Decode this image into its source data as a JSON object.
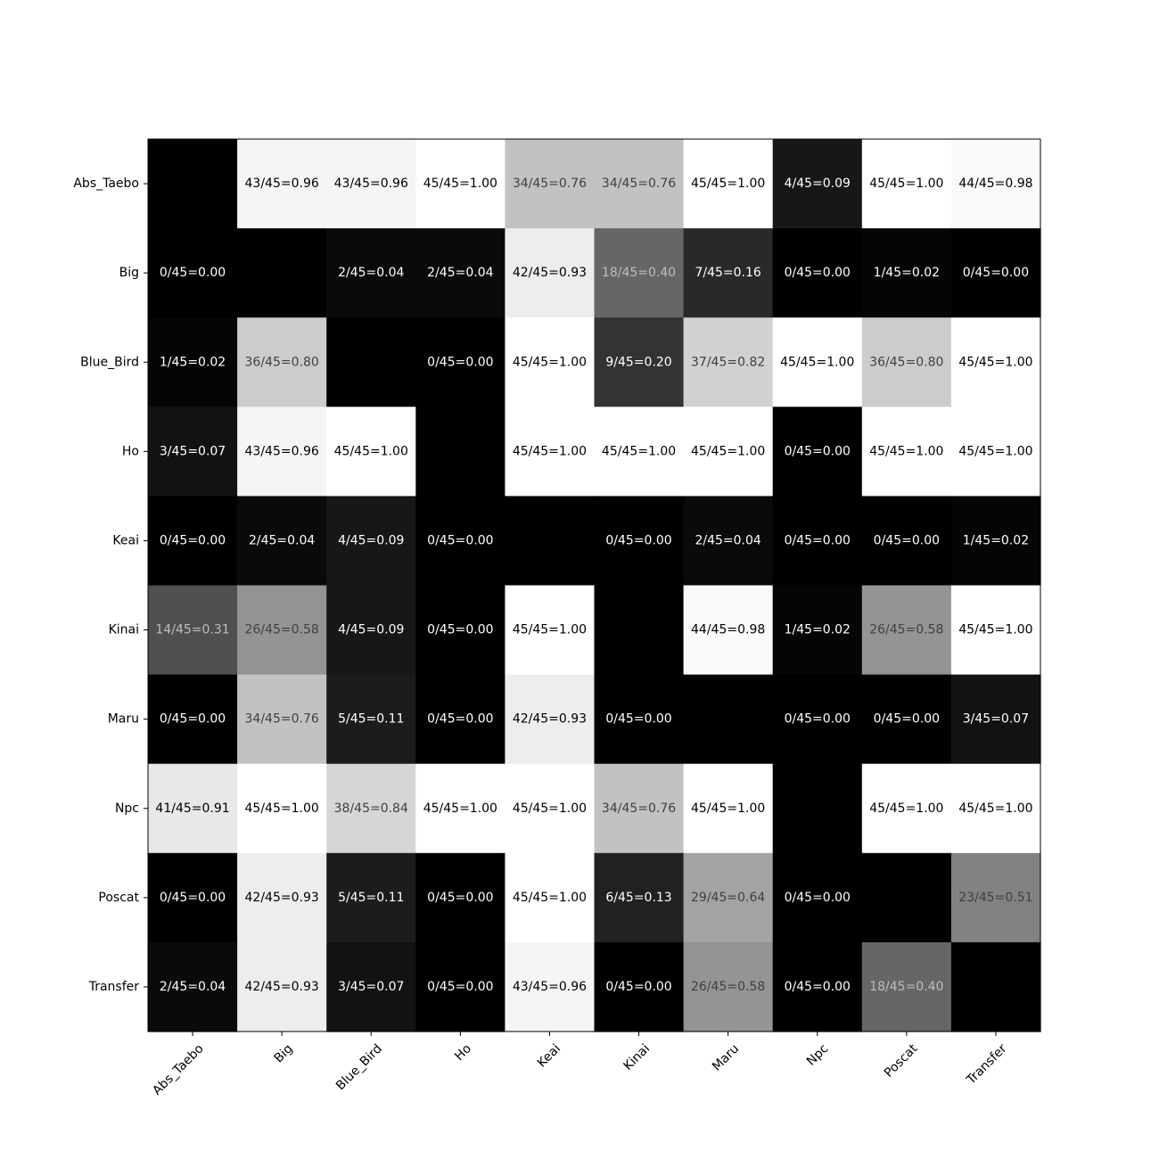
{
  "chart_data": {
    "type": "heatmap",
    "title": "",
    "xlabel": "",
    "ylabel": "",
    "colormap": "gray",
    "value_range": [
      0,
      1
    ],
    "grid": false,
    "legend": "none",
    "rows": [
      "Abs_Taebo",
      "Big",
      "Blue_Bird",
      "Ho",
      "Keai",
      "Kinai",
      "Maru",
      "Npc",
      "Poscat",
      "Transfer"
    ],
    "columns": [
      "Abs_Taebo",
      "Big",
      "Blue_Bird",
      "Ho",
      "Keai",
      "Kinai",
      "Maru",
      "Npc",
      "Poscat",
      "Transfer"
    ],
    "values": [
      [
        null,
        0.96,
        0.96,
        1.0,
        0.76,
        0.76,
        1.0,
        0.09,
        1.0,
        0.98
      ],
      [
        0.0,
        null,
        0.04,
        0.04,
        0.93,
        0.4,
        0.16,
        0.0,
        0.02,
        0.0
      ],
      [
        0.02,
        0.8,
        null,
        0.0,
        1.0,
        0.2,
        0.82,
        1.0,
        0.8,
        1.0
      ],
      [
        0.07,
        0.96,
        1.0,
        null,
        1.0,
        1.0,
        1.0,
        0.0,
        1.0,
        1.0
      ],
      [
        0.0,
        0.04,
        0.09,
        0.0,
        null,
        0.0,
        0.04,
        0.0,
        0.0,
        0.02
      ],
      [
        0.31,
        0.58,
        0.09,
        0.0,
        1.0,
        null,
        0.98,
        0.02,
        0.58,
        1.0
      ],
      [
        0.0,
        0.76,
        0.11,
        0.0,
        0.93,
        0.0,
        null,
        0.0,
        0.0,
        0.07
      ],
      [
        0.91,
        1.0,
        0.84,
        1.0,
        1.0,
        0.76,
        1.0,
        null,
        1.0,
        1.0
      ],
      [
        0.0,
        0.93,
        0.11,
        0.0,
        1.0,
        0.13,
        0.64,
        0.0,
        null,
        0.51
      ],
      [
        0.04,
        0.93,
        0.07,
        0.0,
        0.96,
        0.0,
        0.58,
        0.0,
        0.4,
        null
      ]
    ],
    "labels": [
      [
        "",
        "43/45=0.96",
        "43/45=0.96",
        "45/45=1.00",
        "34/45=0.76",
        "34/45=0.76",
        "45/45=1.00",
        "4/45=0.09",
        "45/45=1.00",
        "44/45=0.98"
      ],
      [
        "0/45=0.00",
        "",
        "2/45=0.04",
        "2/45=0.04",
        "42/45=0.93",
        "18/45=0.40",
        "7/45=0.16",
        "0/45=0.00",
        "1/45=0.02",
        "0/45=0.00"
      ],
      [
        "1/45=0.02",
        "36/45=0.80",
        "",
        "0/45=0.00",
        "45/45=1.00",
        "9/45=0.20",
        "37/45=0.82",
        "45/45=1.00",
        "36/45=0.80",
        "45/45=1.00"
      ],
      [
        "3/45=0.07",
        "43/45=0.96",
        "45/45=1.00",
        "",
        "45/45=1.00",
        "45/45=1.00",
        "45/45=1.00",
        "0/45=0.00",
        "45/45=1.00",
        "45/45=1.00"
      ],
      [
        "0/45=0.00",
        "2/45=0.04",
        "4/45=0.09",
        "0/45=0.00",
        "",
        "0/45=0.00",
        "2/45=0.04",
        "0/45=0.00",
        "0/45=0.00",
        "1/45=0.02"
      ],
      [
        "14/45=0.31",
        "26/45=0.58",
        "4/45=0.09",
        "0/45=0.00",
        "45/45=1.00",
        "",
        "44/45=0.98",
        "1/45=0.02",
        "26/45=0.58",
        "45/45=1.00"
      ],
      [
        "0/45=0.00",
        "34/45=0.76",
        "5/45=0.11",
        "0/45=0.00",
        "42/45=0.93",
        "0/45=0.00",
        "",
        "0/45=0.00",
        "0/45=0.00",
        "3/45=0.07"
      ],
      [
        "41/45=0.91",
        "45/45=1.00",
        "38/45=0.84",
        "45/45=1.00",
        "45/45=1.00",
        "34/45=0.76",
        "45/45=1.00",
        "",
        "45/45=1.00",
        "45/45=1.00"
      ],
      [
        "0/45=0.00",
        "42/45=0.93",
        "5/45=0.11",
        "0/45=0.00",
        "45/45=1.00",
        "6/45=0.13",
        "29/45=0.64",
        "0/45=0.00",
        "",
        "23/45=0.51"
      ],
      [
        "2/45=0.04",
        "42/45=0.93",
        "3/45=0.07",
        "0/45=0.00",
        "43/45=0.96",
        "0/45=0.00",
        "26/45=0.58",
        "0/45=0.00",
        "18/45=0.40",
        ""
      ]
    ]
  }
}
